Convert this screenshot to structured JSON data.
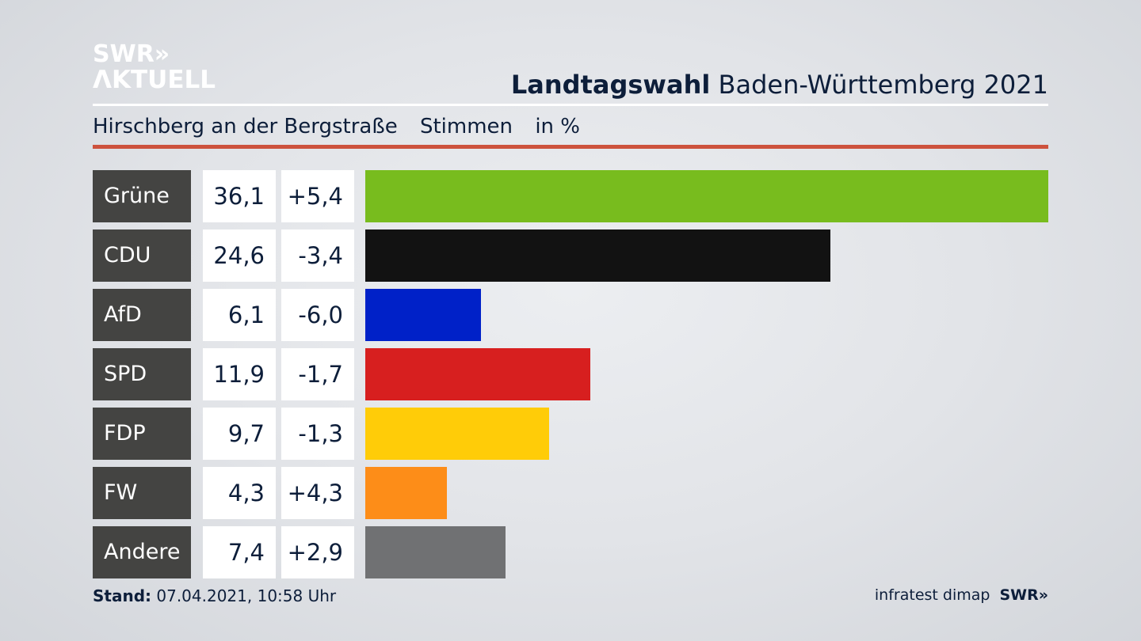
{
  "logo": {
    "line1": "SWR»",
    "line2": "ΛKTUELL"
  },
  "header": {
    "title_bold": "Landtagswahl",
    "title_rest": " Baden-Württemberg 2021",
    "location": "Hirschberg an der Bergstraße",
    "measure": "Stimmen",
    "unit": "in %"
  },
  "colors": {
    "accent_rule": "#cd523d",
    "party_label_bg": "#444442",
    "text": "#0d1e3a"
  },
  "chart_data": {
    "type": "bar",
    "orientation": "horizontal",
    "title": "Landtagswahl Baden-Württemberg 2021",
    "subtitle": "Hirschberg an der Bergstraße · Stimmen in %",
    "categories": [
      "Grüne",
      "CDU",
      "AfD",
      "SPD",
      "FDP",
      "FW",
      "Andere"
    ],
    "values": [
      36.1,
      24.6,
      6.1,
      11.9,
      9.7,
      4.3,
      7.4
    ],
    "value_labels": [
      "36,1",
      "24,6",
      "6,1",
      "11,9",
      "9,7",
      "4,3",
      "7,4"
    ],
    "diff_labels": [
      "+5,4",
      "-3,4",
      "-6,0",
      "-1,7",
      "-1,3",
      "+4,3",
      "+2,9"
    ],
    "diffs": [
      5.4,
      -3.4,
      -6.0,
      -1.7,
      -1.3,
      4.3,
      2.9
    ],
    "colors": [
      "#78bc1e",
      "#121212",
      "#0021c8",
      "#d71f1f",
      "#ffcc08",
      "#fd8d18",
      "#707173"
    ],
    "xlim": [
      0,
      36.1
    ],
    "xlabel": "",
    "ylabel": "",
    "grid": false
  },
  "footer": {
    "stand_label": "Stand:",
    "stand_value": " 07.04.2021, 10:58 Uhr",
    "source": "infratest dimap",
    "brand": "SWR»"
  }
}
